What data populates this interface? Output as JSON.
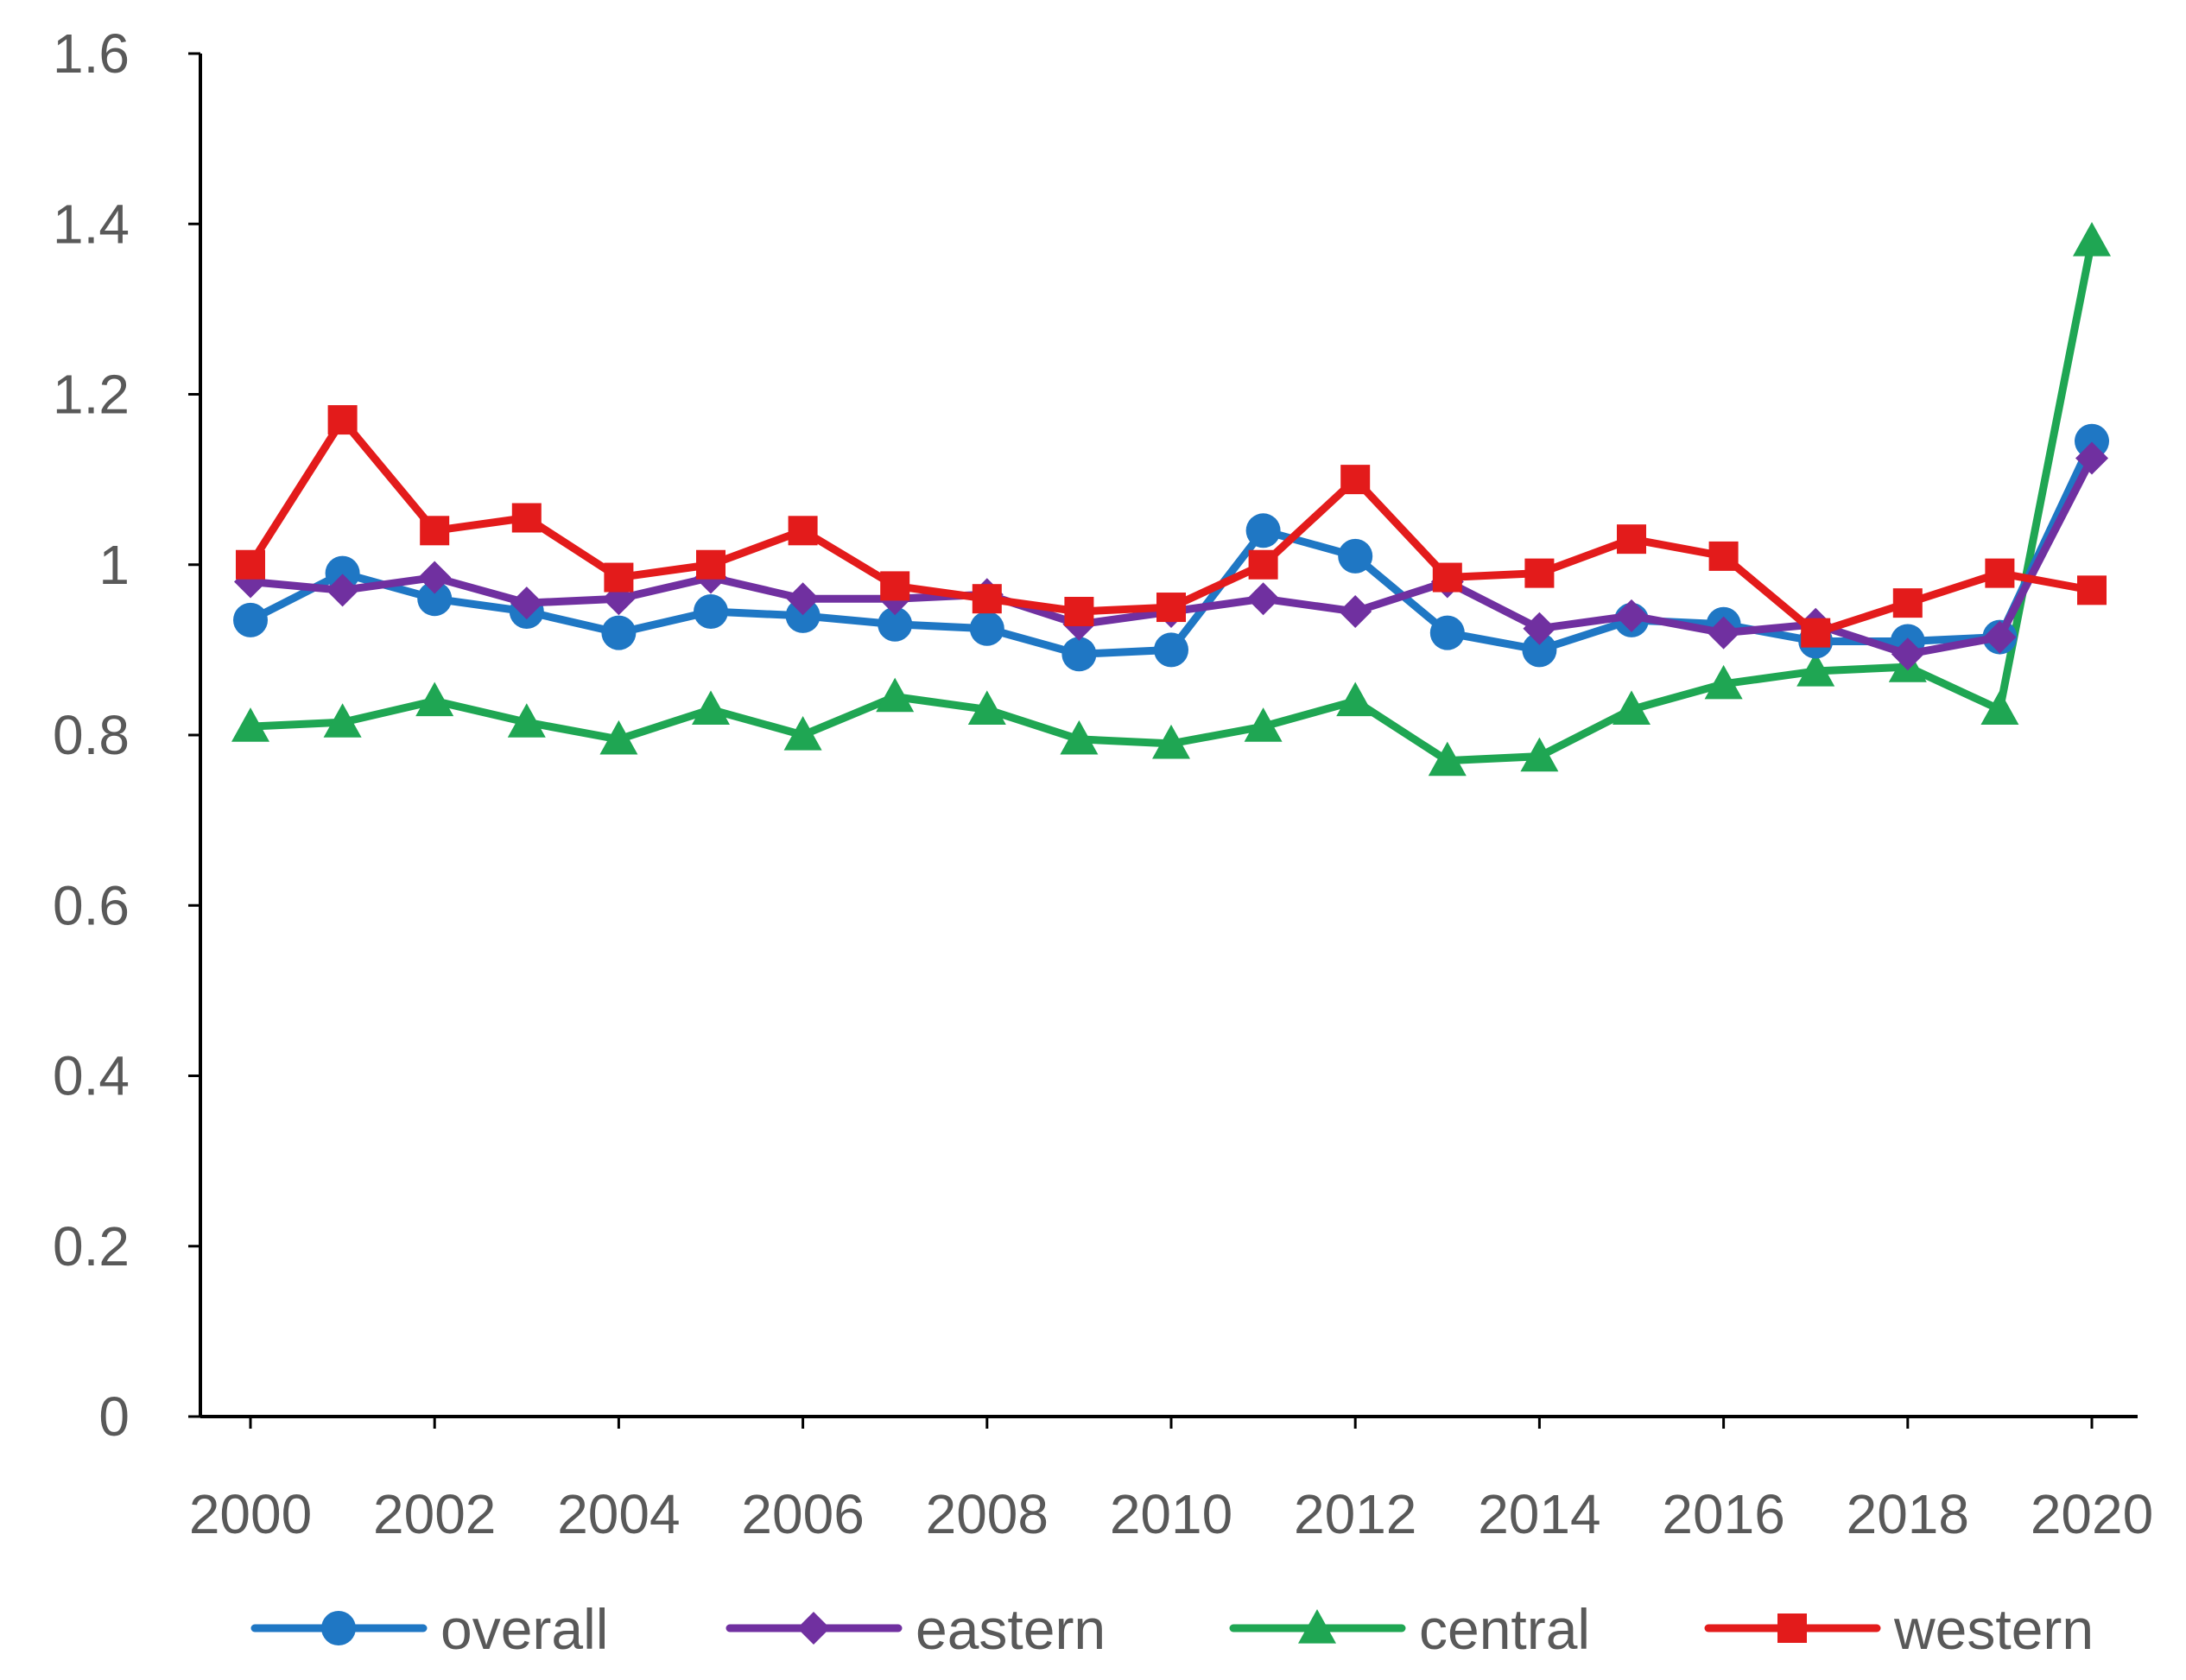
{
  "chart_data": {
    "type": "line",
    "title": "",
    "xlabel": "",
    "ylabel": "",
    "x": [
      2000,
      2001,
      2002,
      2003,
      2004,
      2005,
      2006,
      2007,
      2008,
      2009,
      2010,
      2011,
      2012,
      2013,
      2014,
      2015,
      2016,
      2017,
      2018,
      2019,
      2020
    ],
    "x_tick_labels": [
      "2000",
      "2002",
      "2004",
      "2006",
      "2008",
      "2010",
      "2012",
      "2014",
      "2016",
      "2018",
      "2020"
    ],
    "y_tick_labels": [
      "0",
      "0.2",
      "0.4",
      "0.6",
      "0.8",
      "1",
      "1.2",
      "1.4",
      "1.6"
    ],
    "ylim": [
      0,
      1.6
    ],
    "grid": false,
    "legend_position": "bottom",
    "series": [
      {
        "name": "overall",
        "color": "#1f77c4",
        "marker": "circle",
        "values": [
          0.935,
          0.99,
          0.96,
          0.945,
          0.92,
          0.945,
          0.94,
          0.93,
          0.925,
          0.895,
          0.9,
          1.04,
          1.01,
          0.92,
          0.9,
          0.935,
          0.93,
          0.91,
          0.91,
          0.915,
          1.145
        ]
      },
      {
        "name": "eastern",
        "color": "#7030a0",
        "marker": "diamond",
        "values": [
          0.98,
          0.97,
          0.985,
          0.955,
          0.96,
          0.985,
          0.96,
          0.96,
          0.965,
          0.93,
          0.945,
          0.96,
          0.945,
          0.98,
          0.925,
          0.94,
          0.92,
          0.93,
          0.895,
          0.915,
          1.125
        ]
      },
      {
        "name": "central",
        "color": "#1fa653",
        "marker": "triangle",
        "values": [
          0.81,
          0.815,
          0.84,
          0.815,
          0.795,
          0.83,
          0.8,
          0.845,
          0.83,
          0.795,
          0.79,
          0.81,
          0.84,
          0.77,
          0.775,
          0.83,
          0.86,
          0.875,
          0.88,
          0.83,
          1.38
        ]
      },
      {
        "name": "western",
        "color": "#e31b1b",
        "marker": "square",
        "values": [
          1.0,
          1.17,
          1.04,
          1.055,
          0.985,
          1.0,
          1.04,
          0.975,
          0.96,
          0.945,
          0.95,
          1.0,
          1.1,
          0.985,
          0.99,
          1.03,
          1.01,
          0.92,
          0.955,
          0.99,
          0.97
        ]
      }
    ]
  }
}
